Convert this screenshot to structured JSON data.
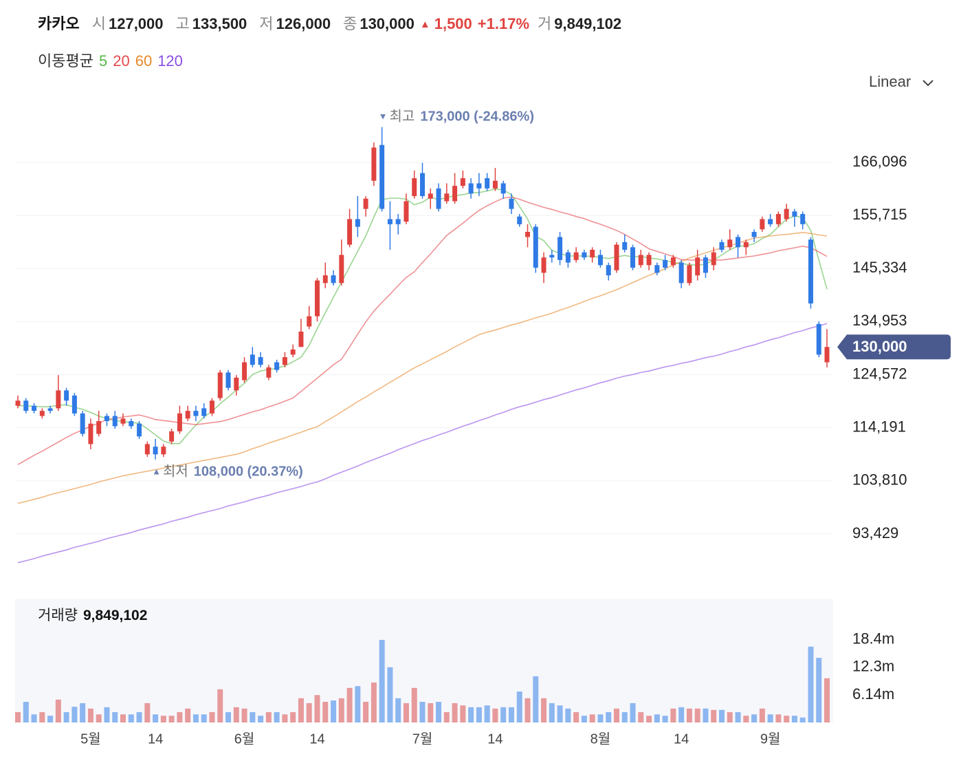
{
  "header": {
    "name": "카카오",
    "items": [
      {
        "label": "시",
        "value": "127,000"
      },
      {
        "label": "고",
        "value": "133,500"
      },
      {
        "label": "저",
        "value": "126,000"
      },
      {
        "label": "종",
        "value": "130,000"
      }
    ],
    "change": {
      "sign": "▲",
      "amount": "1,500",
      "percent": "+1.17%"
    },
    "volume": {
      "label": "거",
      "value": "9,849,102"
    }
  },
  "chart_data": {
    "type": "candlestick",
    "legend_label": "이동평균",
    "scale_selector": "Linear",
    "log_scale": false,
    "grid": true,
    "up_color": "#e0433f",
    "down_color": "#2f7ae5",
    "price_tag": "130,000",
    "annotations": [
      {
        "marker": "▼",
        "label": "최고",
        "text": "173,000 (-24.86%)"
      },
      {
        "marker": "▲",
        "label": "최저",
        "text": "108,000 (20.37%)"
      }
    ],
    "ylim": [
      86163,
      177668
    ],
    "yticks": [
      {
        "value": 93429,
        "label": "93,429"
      },
      {
        "value": 103810,
        "label": "103,810"
      },
      {
        "value": 114191,
        "label": "114,191"
      },
      {
        "value": 124572,
        "label": "124,572"
      },
      {
        "value": 134953,
        "label": "134,953"
      },
      {
        "value": 145334,
        "label": "145,334"
      },
      {
        "value": 155715,
        "label": "155,715"
      },
      {
        "value": 166096,
        "label": "166,096"
      }
    ],
    "categories": [
      null,
      null,
      null,
      null,
      null,
      null,
      null,
      null,
      null,
      "5월",
      null,
      null,
      null,
      null,
      null,
      null,
      null,
      "14",
      null,
      null,
      null,
      null,
      null,
      null,
      null,
      null,
      null,
      null,
      "6월",
      null,
      null,
      null,
      null,
      null,
      null,
      null,
      null,
      "14",
      null,
      null,
      null,
      null,
      null,
      null,
      null,
      null,
      null,
      null,
      null,
      null,
      "7월",
      null,
      null,
      null,
      null,
      null,
      null,
      null,
      null,
      "14",
      null,
      null,
      null,
      null,
      null,
      null,
      null,
      null,
      null,
      null,
      null,
      null,
      "8월",
      null,
      null,
      null,
      null,
      null,
      null,
      null,
      null,
      null,
      "14",
      null,
      null,
      null,
      null,
      null,
      null,
      null,
      null,
      null,
      null,
      "9월",
      null,
      null,
      null,
      null,
      null,
      null,
      null
    ],
    "open": [
      118500,
      119500,
      118500,
      116500,
      118000,
      118000,
      121500,
      120500,
      117000,
      111000,
      113000,
      116500,
      116500,
      115000,
      115500,
      115000,
      109000,
      110500,
      109000,
      111500,
      113500,
      116000,
      117500,
      118000,
      117000,
      120000,
      125000,
      121500,
      123500,
      128500,
      128000,
      124000,
      127000,
      126500,
      128500,
      130000,
      134000,
      136000,
      142500,
      144000,
      142500,
      150000,
      155000,
      157000,
      162500,
      169500,
      155000,
      155000,
      154500,
      159500,
      164000,
      159000,
      161000,
      158500,
      158500,
      161500,
      162000,
      162000,
      163000,
      161000,
      162000,
      159000,
      155500,
      151500,
      153500,
      144500,
      148000,
      151500,
      148500,
      147000,
      148500,
      147500,
      148000,
      146000,
      145000,
      150500,
      149500,
      146000,
      146000,
      146000,
      147000,
      146000,
      146500,
      142500,
      144000,
      147500,
      146000,
      150500,
      149500,
      151500,
      149500,
      152500,
      153000,
      155000,
      154000,
      155000,
      156500,
      156000,
      151000,
      134500,
      127000
    ],
    "high": [
      120500,
      120000,
      119000,
      118000,
      118500,
      124500,
      122000,
      121000,
      117500,
      116000,
      117500,
      117000,
      117500,
      117000,
      116000,
      115500,
      111500,
      112000,
      111000,
      114000,
      118500,
      118500,
      118500,
      119000,
      120000,
      125500,
      125500,
      124500,
      128000,
      130000,
      129000,
      126500,
      127500,
      129000,
      130500,
      135500,
      138000,
      143500,
      146500,
      145000,
      151000,
      157000,
      159500,
      159500,
      170000,
      173000,
      158500,
      156000,
      160000,
      164500,
      166000,
      161000,
      162000,
      162000,
      164000,
      164500,
      163000,
      164000,
      164000,
      165000,
      162500,
      160000,
      156000,
      154000,
      154000,
      148500,
      149000,
      152500,
      149000,
      149500,
      149000,
      149500,
      149000,
      146500,
      150500,
      152000,
      150000,
      149000,
      148500,
      146500,
      148000,
      148000,
      147000,
      146500,
      149000,
      148000,
      149500,
      151000,
      153000,
      152000,
      151000,
      153000,
      155500,
      156000,
      156500,
      158000,
      157000,
      156500,
      151500,
      135000,
      133500
    ],
    "low": [
      118000,
      117000,
      117000,
      116000,
      117000,
      117500,
      118500,
      116500,
      112500,
      110000,
      112500,
      114500,
      114000,
      114500,
      114000,
      112000,
      108500,
      108000,
      108500,
      111000,
      113000,
      115500,
      115500,
      116000,
      116500,
      119500,
      121500,
      120500,
      123000,
      126000,
      126000,
      123500,
      125000,
      126000,
      128000,
      130000,
      133500,
      135000,
      141500,
      142000,
      142000,
      149500,
      151500,
      155500,
      161500,
      156500,
      149000,
      152000,
      154000,
      159000,
      159000,
      157000,
      156500,
      158000,
      158000,
      161000,
      159000,
      159500,
      160500,
      160500,
      159000,
      156000,
      153500,
      149500,
      144500,
      142500,
      146500,
      146000,
      145500,
      146500,
      147000,
      146500,
      145500,
      143000,
      144500,
      148500,
      145000,
      145500,
      145000,
      144000,
      145000,
      145500,
      141500,
      142000,
      143000,
      143500,
      145000,
      148500,
      149000,
      147500,
      148000,
      150500,
      152500,
      153500,
      153500,
      154500,
      153500,
      153000,
      137500,
      128000,
      126000
    ],
    "close": [
      119500,
      117500,
      117500,
      117500,
      117500,
      121500,
      119500,
      117000,
      113000,
      115000,
      115500,
      115500,
      114500,
      116000,
      114500,
      112500,
      111000,
      109000,
      110500,
      113500,
      117000,
      117500,
      116500,
      116500,
      119500,
      125000,
      122000,
      124000,
      127000,
      126500,
      126500,
      126000,
      125500,
      128000,
      129500,
      133000,
      136000,
      143000,
      144000,
      142500,
      148000,
      155000,
      153500,
      159000,
      169000,
      157000,
      154000,
      154000,
      158500,
      163000,
      159500,
      160000,
      157000,
      160000,
      161500,
      163000,
      160000,
      161000,
      161000,
      162500,
      160000,
      157000,
      154000,
      152500,
      145500,
      147500,
      147500,
      147000,
      146500,
      148500,
      147500,
      149000,
      146000,
      144000,
      150000,
      149000,
      145500,
      148000,
      148000,
      144500,
      145500,
      147500,
      142500,
      146000,
      147500,
      144500,
      148500,
      149000,
      151000,
      149500,
      150500,
      151500,
      155000,
      154000,
      156000,
      157000,
      155500,
      154000,
      138500,
      128500,
      130000
    ],
    "series": [
      {
        "name": "5",
        "color": "#56b946",
        "values": [
          118500,
          118500,
          118400,
          118300,
          118300,
          118600,
          118700,
          118200,
          117800,
          117200,
          116500,
          116000,
          115600,
          115400,
          115200,
          115100,
          114000,
          112800,
          111600,
          111100,
          111100,
          113000,
          114700,
          116300,
          117400,
          118900,
          120200,
          121600,
          122900,
          124600,
          125300,
          125600,
          125800,
          126300,
          127100,
          128000,
          130300,
          133600,
          136700,
          139700,
          142700,
          145700,
          148700,
          151700,
          155400,
          158800,
          159100,
          159100,
          158900,
          157800,
          158300,
          159300,
          158800,
          159200,
          159600,
          159800,
          160100,
          160200,
          160500,
          160900,
          160700,
          159800,
          157500,
          155000,
          151600,
          150800,
          148900,
          148300,
          147800,
          147800,
          147800,
          147700,
          147500,
          147300,
          147600,
          147900,
          147600,
          147700,
          147400,
          147200,
          146900,
          146500,
          146300,
          146100,
          146000,
          146200,
          147000,
          148000,
          149000,
          149700,
          149800,
          150200,
          151200,
          152000,
          153500,
          155000,
          155600,
          155300,
          152800,
          147000,
          141300
        ]
      },
      {
        "name": "20",
        "color": "#e5484d",
        "values": [
          107000,
          107900,
          108800,
          109600,
          110500,
          111400,
          112300,
          113100,
          113800,
          114500,
          115100,
          115800,
          116000,
          116300,
          116500,
          116700,
          116300,
          115800,
          115600,
          115400,
          115200,
          115000,
          114800,
          115000,
          115200,
          115400,
          115800,
          116300,
          116800,
          117300,
          117700,
          118300,
          118800,
          119400,
          120000,
          121300,
          122600,
          123900,
          125200,
          126500,
          127600,
          130000,
          132500,
          134900,
          137000,
          138700,
          140300,
          142000,
          143600,
          144700,
          146500,
          148200,
          150000,
          151800,
          153000,
          154200,
          155500,
          156700,
          157600,
          158400,
          159100,
          159300,
          158900,
          158300,
          157800,
          157300,
          156900,
          156400,
          156000,
          155500,
          155100,
          154500,
          154000,
          153400,
          152800,
          152000,
          151100,
          150200,
          149200,
          148700,
          148200,
          147700,
          147100,
          147000,
          147000,
          147000,
          147000,
          147000,
          147200,
          147400,
          147600,
          147800,
          148100,
          148400,
          148800,
          149100,
          149400,
          149700,
          149400,
          148600,
          147700
        ]
      },
      {
        "name": "60",
        "color": "#e8892b",
        "values": [
          99400,
          99800,
          100200,
          100600,
          101100,
          101500,
          101900,
          102300,
          102700,
          103100,
          103600,
          104000,
          104400,
          104800,
          105100,
          105400,
          105700,
          106000,
          106300,
          106600,
          106900,
          107200,
          107500,
          107800,
          108100,
          108400,
          108700,
          109000,
          109500,
          110100,
          110600,
          111200,
          111700,
          112200,
          112800,
          113300,
          113900,
          114400,
          115400,
          116300,
          117300,
          118300,
          119300,
          120200,
          121200,
          122100,
          123100,
          124000,
          125000,
          125900,
          126700,
          127500,
          128300,
          129100,
          130000,
          130800,
          131600,
          132400,
          132900,
          133300,
          133800,
          134300,
          134700,
          135200,
          135700,
          136100,
          136600,
          137200,
          137700,
          138300,
          138900,
          139500,
          140000,
          140600,
          141200,
          141900,
          142600,
          143300,
          144000,
          144600,
          145300,
          146000,
          146700,
          147400,
          147900,
          148400,
          148900,
          149400,
          149800,
          150300,
          150800,
          151300,
          151500,
          151700,
          151900,
          152000,
          152200,
          152400,
          152200,
          151900,
          151700
        ]
      },
      {
        "name": "120",
        "color": "#8a4de6",
        "values": [
          87800,
          88200,
          88600,
          89100,
          89500,
          89900,
          90300,
          90800,
          91200,
          91600,
          92000,
          92500,
          92900,
          93300,
          93700,
          94200,
          94600,
          95000,
          95400,
          95900,
          96300,
          96700,
          97200,
          97600,
          98000,
          98400,
          98900,
          99300,
          99700,
          100200,
          100600,
          101000,
          101500,
          101900,
          102300,
          102700,
          103200,
          103600,
          104200,
          104900,
          105500,
          106100,
          106700,
          107400,
          108000,
          108600,
          109200,
          109900,
          110500,
          111100,
          111700,
          112200,
          112800,
          113300,
          113900,
          114500,
          115000,
          115600,
          116100,
          116700,
          117200,
          117800,
          118300,
          118700,
          119200,
          119700,
          120100,
          120600,
          121100,
          121600,
          122000,
          122500,
          123000,
          123400,
          123900,
          124300,
          124600,
          125000,
          125300,
          125700,
          126100,
          126400,
          126800,
          127100,
          127500,
          127900,
          128200,
          128600,
          129100,
          129500,
          130000,
          130400,
          130900,
          131400,
          131800,
          132300,
          132800,
          133200,
          133700,
          134100,
          134600
        ]
      }
    ],
    "volume": {
      "title": "거래량",
      "last_label": "9,849,102",
      "up_color": "#e79a9b",
      "down_color": "#8cb6f0",
      "ylim": [
        0,
        27600000
      ],
      "yticks": [
        {
          "value": 6140000,
          "label": "6.14m"
        },
        {
          "value": 12280000,
          "label": "12.3m"
        },
        {
          "value": 18420000,
          "label": "18.4m"
        }
      ],
      "values": [
        2300000,
        4600000,
        1800000,
        2300000,
        1500000,
        5100000,
        2300000,
        3500000,
        4300000,
        3100000,
        1800000,
        3400000,
        2300000,
        1800000,
        1800000,
        2300000,
        4300000,
        1800000,
        1500000,
        1500000,
        2300000,
        3100000,
        1800000,
        1800000,
        2300000,
        7400000,
        2300000,
        3400000,
        3100000,
        2300000,
        1500000,
        2300000,
        2300000,
        1800000,
        2300000,
        5400000,
        4300000,
        6100000,
        4600000,
        4900000,
        5400000,
        7700000,
        8100000,
        4600000,
        8900000,
        18400000,
        12300000,
        5400000,
        4300000,
        7700000,
        4600000,
        4300000,
        4600000,
        2300000,
        4300000,
        3800000,
        3400000,
        3400000,
        3800000,
        3100000,
        3400000,
        3400000,
        6900000,
        5400000,
        10300000,
        5400000,
        4300000,
        3800000,
        3100000,
        2300000,
        1500000,
        1800000,
        1800000,
        2300000,
        3100000,
        2300000,
        4300000,
        2300000,
        1500000,
        1800000,
        1500000,
        3100000,
        3400000,
        3100000,
        3100000,
        3100000,
        2800000,
        2800000,
        2300000,
        2300000,
        1500000,
        1800000,
        3100000,
        1800000,
        1800000,
        1500000,
        1500000,
        1100000,
        16900000,
        14400000,
        9849102
      ]
    }
  }
}
